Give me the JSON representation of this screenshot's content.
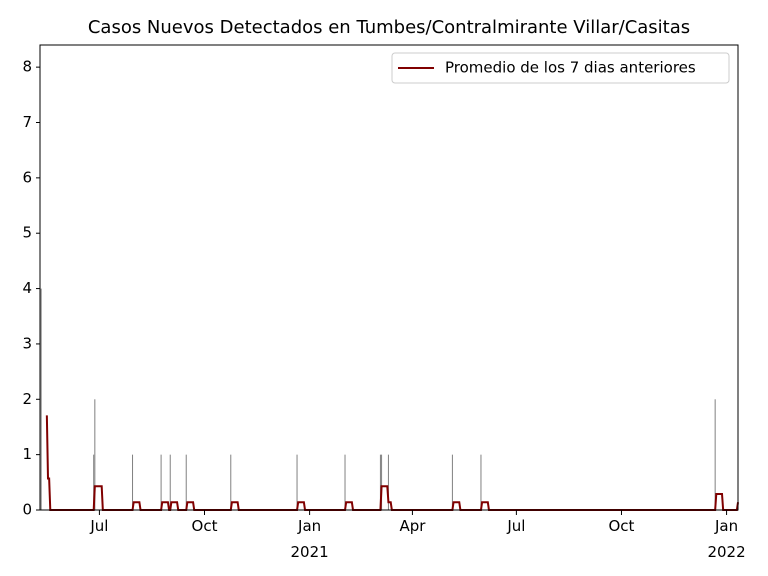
{
  "chart_data": {
    "type": "bar_line",
    "title": "Casos Nuevos Detectados en Tumbes/Contralmirante Villar/Casitas",
    "xlim": [
      "2020-05-10",
      "2022-01-11"
    ],
    "xticks": [
      {
        "value": "2020-07-01",
        "label": "Jul"
      },
      {
        "value": "2020-10-01",
        "label": "Oct"
      },
      {
        "value": "2021-01-01",
        "label": "Jan",
        "sublabel": "2021"
      },
      {
        "value": "2021-04-01",
        "label": "Apr"
      },
      {
        "value": "2021-07-01",
        "label": "Jul"
      },
      {
        "value": "2021-10-01",
        "label": "Oct"
      },
      {
        "value": "2022-01-01",
        "label": "Jan",
        "sublabel": "2022"
      }
    ],
    "ylim": [
      0,
      8.4
    ],
    "yticks": [
      0,
      1,
      2,
      3,
      4,
      5,
      6,
      7,
      8
    ],
    "bars": {
      "color": "#808080",
      "x": [
        "2020-05-11",
        "2020-06-26",
        "2020-06-27",
        "2020-07-30",
        "2020-08-24",
        "2020-09-01",
        "2020-09-15",
        "2020-10-24",
        "2020-12-21",
        "2021-02-01",
        "2021-03-04",
        "2021-03-05",
        "2021-03-11",
        "2021-05-06",
        "2021-05-31",
        "2021-12-22",
        "2022-01-11"
      ],
      "values": [
        4,
        1,
        2,
        1,
        1,
        1,
        1,
        1,
        1,
        1,
        1,
        1,
        1,
        1,
        1,
        2,
        1
      ]
    },
    "series": [
      {
        "name": "Promedio de los 7 dias anteriores",
        "color": "#800000",
        "x": [
          "2020-05-16",
          "2020-05-17",
          "2020-05-18",
          "2020-05-19",
          "2020-06-26",
          "2020-06-27",
          "2020-07-03",
          "2020-07-04",
          "2020-07-30",
          "2020-07-31",
          "2020-08-05",
          "2020-08-06",
          "2020-08-24",
          "2020-08-25",
          "2020-08-30",
          "2020-08-31",
          "2020-09-01",
          "2020-09-02",
          "2020-09-07",
          "2020-09-08",
          "2020-09-15",
          "2020-09-16",
          "2020-09-21",
          "2020-09-22",
          "2020-10-24",
          "2020-10-25",
          "2020-10-30",
          "2020-10-31",
          "2020-12-21",
          "2020-12-22",
          "2020-12-27",
          "2020-12-28",
          "2021-02-01",
          "2021-02-02",
          "2021-02-07",
          "2021-02-08",
          "2021-03-04",
          "2021-03-05",
          "2021-03-10",
          "2021-03-11",
          "2021-03-13",
          "2021-03-14",
          "2021-05-06",
          "2021-05-07",
          "2021-05-12",
          "2021-05-13",
          "2021-05-31",
          "2021-06-01",
          "2021-06-06",
          "2021-06-07",
          "2021-12-22",
          "2021-12-23",
          "2021-12-28",
          "2021-12-29",
          "2022-01-10",
          "2022-01-11"
        ],
        "values": [
          1.71,
          0.57,
          0.57,
          0,
          0,
          0.43,
          0.43,
          0,
          0,
          0.14,
          0.14,
          0,
          0,
          0.14,
          0.14,
          0,
          0,
          0.14,
          0.14,
          0,
          0,
          0.14,
          0.14,
          0,
          0,
          0.14,
          0.14,
          0,
          0,
          0.14,
          0.14,
          0,
          0,
          0.14,
          0.14,
          0,
          0,
          0.43,
          0.43,
          0.14,
          0.14,
          0,
          0,
          0.14,
          0.14,
          0,
          0,
          0.14,
          0.14,
          0,
          0,
          0.29,
          0.29,
          0,
          0,
          0.14
        ]
      }
    ],
    "legend": "upper right"
  }
}
